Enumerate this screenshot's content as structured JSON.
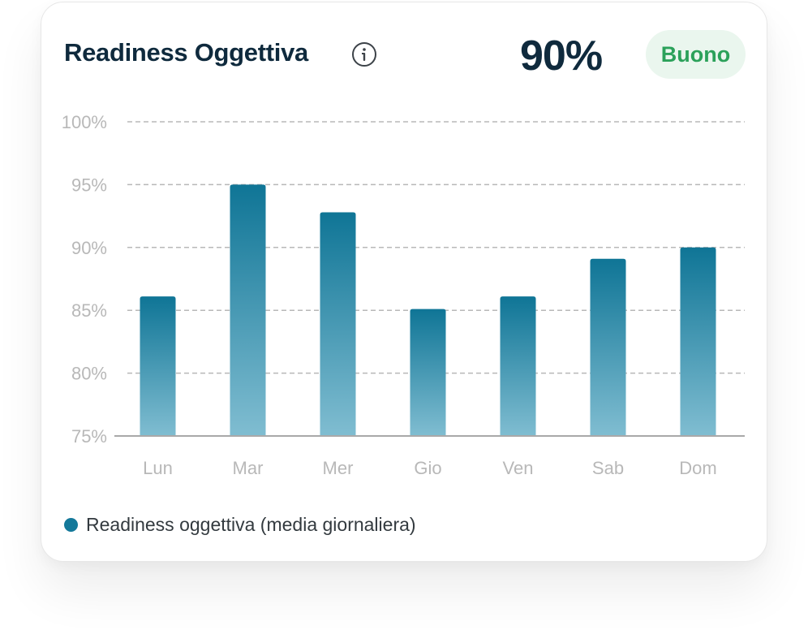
{
  "header": {
    "title": "Readiness Oggettiva",
    "score": "90%",
    "status_badge": "Buono"
  },
  "colors": {
    "bar_top": "#0f7596",
    "bar_bottom": "#80bdd1",
    "grid": "#b8b8b8",
    "axis": "#a9a9a9",
    "tick_label": "#b8b8b8",
    "badge_text": "#2ba15a",
    "badge_bg": "#eaf6ee"
  },
  "legend": {
    "label": "Readiness oggettiva (media giornaliera)"
  },
  "chart_data": {
    "type": "bar",
    "title": "Readiness Oggettiva",
    "xlabel": "",
    "ylabel": "",
    "categories": [
      "Lun",
      "Mar",
      "Mer",
      "Gio",
      "Ven",
      "Sab",
      "Dom"
    ],
    "series": [
      {
        "name": "Readiness oggettiva (media giornaliera)",
        "values": [
          86.1,
          95.0,
          92.8,
          85.1,
          86.1,
          89.1,
          90.0
        ]
      }
    ],
    "ylim": [
      75,
      100
    ],
    "yticks": [
      75,
      80,
      85,
      90,
      95,
      100
    ],
    "ytick_labels": [
      "75%",
      "80%",
      "85%",
      "90%",
      "95%",
      "100%"
    ],
    "grid": true,
    "legend_position": "bottom-left"
  }
}
